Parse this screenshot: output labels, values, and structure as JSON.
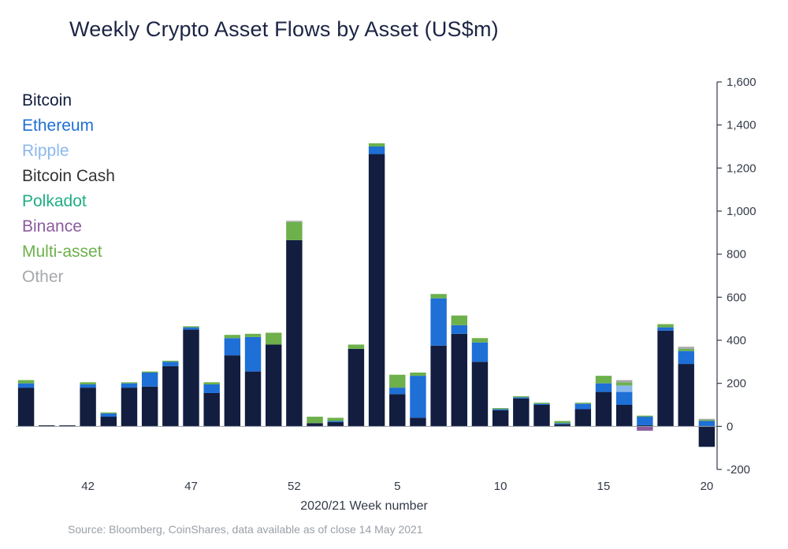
{
  "chart_data": {
    "type": "bar",
    "stacked": true,
    "title": "Weekly Crypto Asset Flows by Asset (US$m)",
    "xlabel": "2020/21 Week number",
    "ylabel": "",
    "ylim": [
      -200,
      1600
    ],
    "yticks": [
      -200,
      0,
      200,
      400,
      600,
      800,
      1000,
      1200,
      1400,
      1600
    ],
    "ytick_labels": [
      "-200",
      "0",
      "200",
      "400",
      "600",
      "800",
      "1,000",
      "1,200",
      "1,400",
      "1,600"
    ],
    "xtick_labels": [
      {
        "index": 3,
        "label": "42"
      },
      {
        "index": 8,
        "label": "47"
      },
      {
        "index": 13,
        "label": "52"
      },
      {
        "index": 18,
        "label": "5"
      },
      {
        "index": 23,
        "label": "10"
      },
      {
        "index": 28,
        "label": "15"
      },
      {
        "index": 33,
        "label": "20"
      }
    ],
    "source": "Source: Bloomberg, CoinShares, data available as of close 14 May 2021",
    "colors": {
      "Bitcoin": "#121d3f",
      "Ethereum": "#1e6fd6",
      "Ripple": "#8ab8ec",
      "Bitcoin Cash": "#333333",
      "Polkadot": "#1fae84",
      "Binance": "#8c5a9e",
      "Multi-asset": "#6db04c",
      "Other": "#a6a8ab"
    },
    "series": [
      {
        "name": "Bitcoin",
        "values": [
          180,
          5,
          5,
          180,
          45,
          180,
          185,
          280,
          450,
          155,
          330,
          255,
          380,
          865,
          15,
          20,
          360,
          1265,
          150,
          40,
          375,
          430,
          300,
          75,
          130,
          100,
          10,
          80,
          160,
          100,
          5,
          445,
          290,
          -95
        ]
      },
      {
        "name": "Ethereum",
        "values": [
          20,
          0,
          0,
          15,
          15,
          20,
          65,
          20,
          10,
          40,
          80,
          160,
          0,
          0,
          0,
          5,
          0,
          35,
          30,
          195,
          220,
          40,
          90,
          5,
          5,
          5,
          5,
          25,
          40,
          60,
          40,
          15,
          60,
          25
        ]
      },
      {
        "name": "Ripple",
        "values": [
          0,
          0,
          0,
          0,
          0,
          0,
          0,
          0,
          0,
          0,
          0,
          0,
          0,
          0,
          0,
          0,
          0,
          0,
          0,
          0,
          0,
          0,
          0,
          0,
          0,
          0,
          0,
          0,
          0,
          30,
          0,
          0,
          0,
          0
        ]
      },
      {
        "name": "Bitcoin Cash",
        "values": [
          0,
          0,
          0,
          0,
          0,
          0,
          0,
          0,
          0,
          0,
          0,
          0,
          0,
          0,
          0,
          0,
          0,
          0,
          0,
          0,
          0,
          0,
          0,
          0,
          0,
          0,
          0,
          0,
          0,
          0,
          0,
          0,
          0,
          0
        ]
      },
      {
        "name": "Polkadot",
        "values": [
          0,
          0,
          0,
          0,
          0,
          0,
          0,
          0,
          0,
          0,
          0,
          0,
          0,
          0,
          0,
          0,
          0,
          0,
          0,
          0,
          0,
          0,
          0,
          0,
          0,
          0,
          0,
          0,
          0,
          0,
          0,
          0,
          0,
          0
        ]
      },
      {
        "name": "Binance",
        "values": [
          0,
          0,
          0,
          0,
          0,
          0,
          0,
          0,
          0,
          0,
          0,
          0,
          0,
          0,
          0,
          0,
          0,
          0,
          0,
          0,
          0,
          0,
          0,
          0,
          0,
          0,
          0,
          0,
          0,
          0,
          -20,
          0,
          0,
          0
        ]
      },
      {
        "name": "Multi-asset",
        "values": [
          15,
          0,
          0,
          10,
          5,
          5,
          5,
          5,
          5,
          10,
          15,
          15,
          55,
          85,
          30,
          15,
          20,
          15,
          60,
          15,
          20,
          45,
          20,
          5,
          5,
          5,
          10,
          5,
          35,
          15,
          5,
          15,
          10,
          5
        ]
      },
      {
        "name": "Other",
        "values": [
          0,
          0,
          0,
          0,
          0,
          0,
          0,
          0,
          0,
          0,
          0,
          0,
          0,
          5,
          0,
          0,
          0,
          0,
          0,
          0,
          0,
          0,
          0,
          0,
          0,
          0,
          0,
          0,
          0,
          10,
          0,
          0,
          10,
          5
        ]
      }
    ]
  }
}
